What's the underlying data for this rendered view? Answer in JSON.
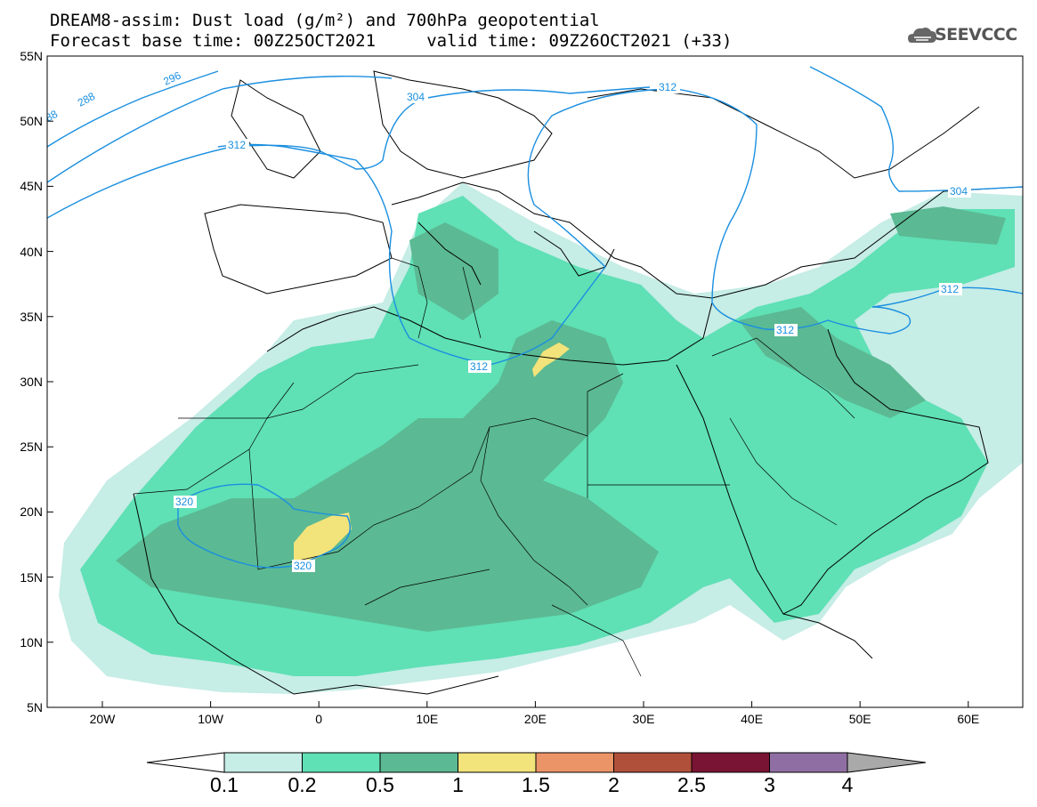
{
  "header": {
    "title_line_1": "DREAM8-assim: Dust load (g/m²) and 700hPa geopotential",
    "title_line_2": "Forecast base time: 00Z25OCT2021     valid time: 09Z26OCT2021 (+33)",
    "logo_text": "SEEVCCC"
  },
  "map": {
    "lat_labels": [
      "55N",
      "50N",
      "45N",
      "40N",
      "35N",
      "30N",
      "25N",
      "20N",
      "15N",
      "10N",
      "5N"
    ],
    "lon_labels": [
      "20W",
      "10W",
      "0",
      "10E",
      "20E",
      "30E",
      "40E",
      "50E",
      "60E"
    ],
    "isohypse_labels": [
      "288",
      "288",
      "296",
      "304",
      "312",
      "312",
      "312",
      "312",
      "304",
      "312",
      "320",
      "320"
    ]
  },
  "colorbar": {
    "labels": [
      "0.1",
      "0.2",
      "0.5",
      "1",
      "1.5",
      "2",
      "2.5",
      "3",
      "4"
    ],
    "colors": [
      "#c6ede6",
      "#5fe0b5",
      "#5bb993",
      "#f2e37a",
      "#eb9468",
      "#b0503b",
      "#7a1434",
      "#8f6fa3"
    ],
    "under_color": "#ffffff",
    "over_color": "#a9a9a9"
  }
}
